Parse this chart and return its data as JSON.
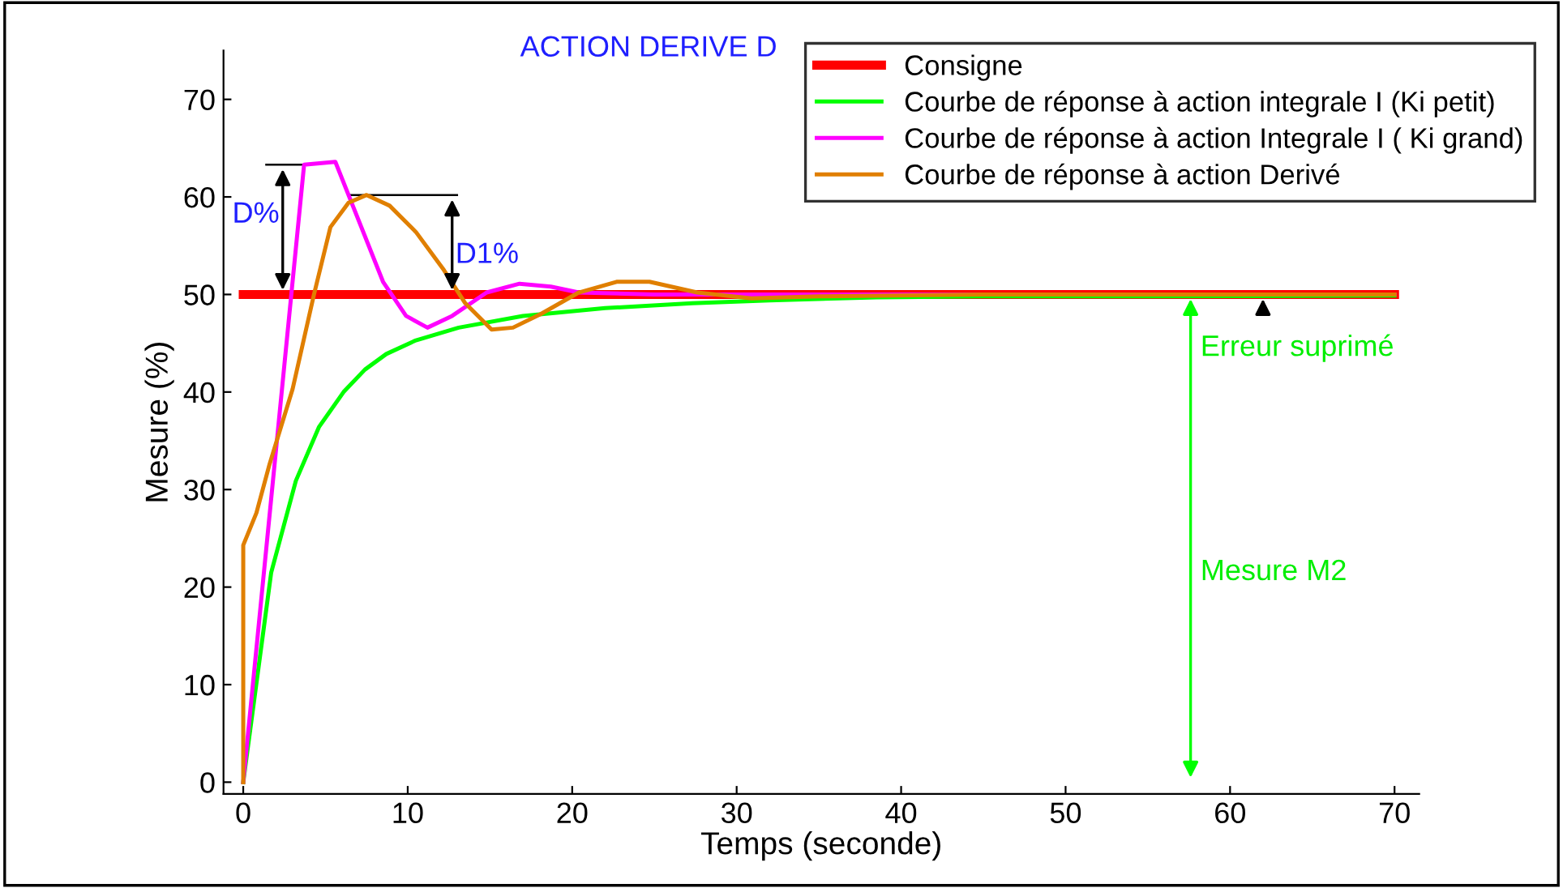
{
  "chart_data": {
    "type": "line",
    "title": "ACTION DERIVE D",
    "xlabel": "Temps (seconde)",
    "ylabel": "Mesure (%)",
    "xlim": [
      -1.2,
      71.5
    ],
    "ylim": [
      -1.2,
      75
    ],
    "xticks": [
      0,
      10,
      20,
      30,
      40,
      50,
      60,
      70
    ],
    "yticks": [
      0,
      10,
      20,
      30,
      40,
      50,
      60,
      70
    ],
    "grid": false,
    "legend": "top right",
    "marker": "none",
    "line_style": "solid",
    "series": [
      {
        "name": "Consigne",
        "color": "#ff0000",
        "x": [
          0,
          70
        ],
        "values": [
          50,
          50
        ]
      },
      {
        "name": "Courbe de réponse à action integrale I (Ki petit)",
        "color": "#00ff00",
        "x": [
          0,
          1.7,
          3.2,
          4.6,
          6.1,
          7.4,
          8.7,
          10.5,
          13.1,
          17,
          22,
          27.3,
          32,
          38.5,
          45,
          55,
          70
        ],
        "values": [
          0,
          21.5,
          30.9,
          36.4,
          40,
          42.3,
          43.9,
          45.3,
          46.6,
          47.8,
          48.6,
          49.1,
          49.4,
          49.7,
          49.8,
          49.8,
          49.9
        ]
      },
      {
        "name": "Courbe de réponse à action Integrale I ( Ki grand)",
        "color": "#ff00ff",
        "x": [
          0,
          3.7,
          5.6,
          8.5,
          9.9,
          11.2,
          12.7,
          14.8,
          16.8,
          18.7,
          20.4,
          25,
          35,
          50,
          70
        ],
        "values": [
          0,
          63.3,
          63.6,
          51.3,
          47.8,
          46.6,
          47.8,
          50.2,
          51.1,
          50.8,
          50.2,
          50,
          50,
          50,
          50
        ]
      },
      {
        "name": "Courbe de réponse à action Derivé",
        "color": "#e07f00",
        "x": [
          0,
          0,
          0.8,
          1.6,
          3,
          4.3,
          5.3,
          6.4,
          7.5,
          8.9,
          10.5,
          12.2,
          13.5,
          15.1,
          16.4,
          18.1,
          20.4,
          22.7,
          24.7,
          27.6,
          30.9,
          35,
          45,
          70
        ],
        "values": [
          0,
          24.3,
          27.6,
          32.6,
          40.3,
          50,
          56.9,
          59.4,
          60.2,
          59.1,
          56.4,
          52.5,
          49.1,
          46.4,
          46.6,
          48,
          50.2,
          51.3,
          51.3,
          50.2,
          49.6,
          49.8,
          50,
          50
        ]
      }
    ],
    "annotations": [
      {
        "text": "D%",
        "x": 3.7,
        "y": 63.3
      },
      "D1%",
      "Erreur suprimé",
      "Mesure M2"
    ]
  }
}
